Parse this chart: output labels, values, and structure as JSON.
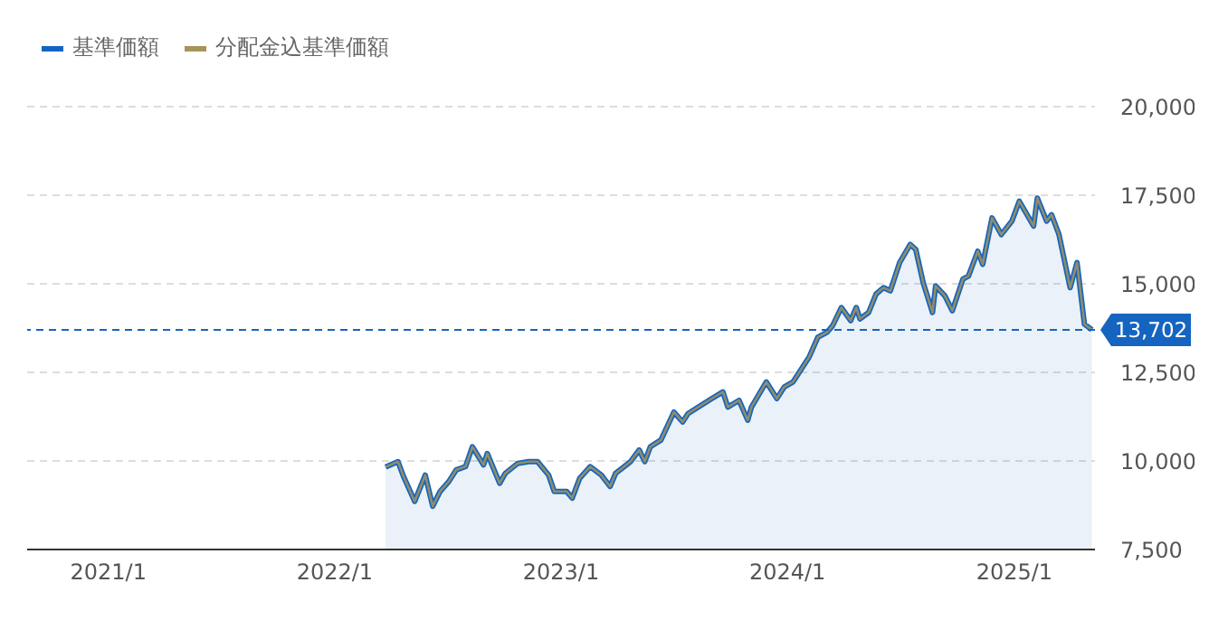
{
  "chart_data": {
    "type": "line",
    "x": [
      "2022-03-24",
      "2022-04-13",
      "2022-04-22",
      "2022-05-10",
      "2022-05-27",
      "2022-06-08",
      "2022-06-20",
      "2022-07-04",
      "2022-07-16",
      "2022-07-31",
      "2022-08-11",
      "2022-08-29",
      "2022-09-04",
      "2022-09-24",
      "2022-10-03",
      "2022-10-23",
      "2022-11-10",
      "2022-11-24",
      "2022-12-12",
      "2022-12-21",
      "2023-01-10",
      "2023-01-19",
      "2023-01-31",
      "2023-02-17",
      "2023-03-07",
      "2023-03-21",
      "2023-03-30",
      "2023-04-23",
      "2023-05-07",
      "2023-05-16",
      "2023-05-25",
      "2023-06-11",
      "2023-07-02",
      "2023-07-16",
      "2023-07-25",
      "2023-09-01",
      "2023-09-19",
      "2023-09-27",
      "2023-10-15",
      "2023-10-29",
      "2023-11-04",
      "2023-11-28",
      "2023-12-15",
      "2023-12-27",
      "2024-01-10",
      "2024-02-05",
      "2024-02-19",
      "2024-03-05",
      "2024-03-14",
      "2024-03-28",
      "2024-04-12",
      "2024-04-21",
      "2024-04-27",
      "2024-05-11",
      "2024-05-23",
      "2024-06-04",
      "2024-06-15",
      "2024-06-30",
      "2024-07-17",
      "2024-07-26",
      "2024-08-07",
      "2024-08-22",
      "2024-08-27",
      "2024-09-11",
      "2024-09-23",
      "2024-10-10",
      "2024-10-19",
      "2024-11-03",
      "2024-11-11",
      "2024-11-26",
      "2024-12-11",
      "2024-12-28",
      "2025-01-09",
      "2025-02-01",
      "2025-02-07",
      "2025-02-22",
      "2025-03-02",
      "2025-03-14",
      "2025-04-01",
      "2025-04-12",
      "2025-04-24",
      "2025-05-06"
    ],
    "series": [
      {
        "name": "基準価額",
        "type": "area",
        "color": "#1565c0",
        "values": [
          9830,
          9980,
          9560,
          8860,
          9600,
          8720,
          9140,
          9420,
          9750,
          9840,
          10400,
          9890,
          10210,
          9370,
          9650,
          9930,
          9980,
          9980,
          9600,
          9140,
          9140,
          8950,
          9510,
          9840,
          9600,
          9280,
          9650,
          9980,
          10310,
          9980,
          10400,
          10590,
          11380,
          11100,
          11340,
          11760,
          11950,
          11520,
          11710,
          11150,
          11520,
          12230,
          11760,
          12090,
          12230,
          12930,
          13490,
          13630,
          13820,
          14330,
          13960,
          14330,
          14010,
          14190,
          14710,
          14890,
          14800,
          15600,
          16110,
          15970,
          15030,
          14190,
          14940,
          14660,
          14240,
          15130,
          15220,
          15920,
          15550,
          16860,
          16390,
          16770,
          17330,
          16630,
          17420,
          16770,
          16950,
          16390,
          14890,
          15600,
          13860,
          13702
        ]
      },
      {
        "name": "分配金込基準価額",
        "type": "line",
        "color": "#a6945a",
        "values": [
          9830,
          9980,
          9560,
          8860,
          9600,
          8720,
          9140,
          9420,
          9750,
          9840,
          10400,
          9890,
          10210,
          9370,
          9650,
          9930,
          9980,
          9980,
          9600,
          9140,
          9140,
          8950,
          9510,
          9840,
          9600,
          9280,
          9650,
          9980,
          10310,
          9980,
          10400,
          10590,
          11380,
          11100,
          11340,
          11760,
          11950,
          11520,
          11710,
          11150,
          11520,
          12230,
          11760,
          12090,
          12230,
          12930,
          13490,
          13630,
          13820,
          14330,
          13960,
          14330,
          14010,
          14190,
          14710,
          14890,
          14800,
          15600,
          16110,
          15970,
          15030,
          14190,
          14940,
          14660,
          14240,
          15130,
          15220,
          15920,
          15550,
          16860,
          16390,
          16770,
          17330,
          16630,
          17420,
          16770,
          16950,
          16390,
          14890,
          15600,
          13860,
          13702
        ]
      }
    ],
    "xlim": [
      "2020-08-23",
      "2025-05-11"
    ],
    "xticks": [
      {
        "value": "2021-01-01",
        "label": "2021/1"
      },
      {
        "value": "2022-01-01",
        "label": "2022/1"
      },
      {
        "value": "2023-01-01",
        "label": "2023/1"
      },
      {
        "value": "2024-01-01",
        "label": "2024/1"
      },
      {
        "value": "2025-01-01",
        "label": "2025/1"
      }
    ],
    "ylim": [
      7500,
      20000
    ],
    "yticks": [
      {
        "value": 7500,
        "label": "7,500"
      },
      {
        "value": 10000,
        "label": "10,000"
      },
      {
        "value": 12500,
        "label": "12,500"
      },
      {
        "value": 15000,
        "label": "15,000"
      },
      {
        "value": 17500,
        "label": "17,500"
      },
      {
        "value": 20000,
        "label": "20,000"
      }
    ],
    "ref_lines": [
      {
        "axis": "y",
        "value": 13702,
        "label": "13,702",
        "color": "#1565c0",
        "line_style": "dashed"
      }
    ],
    "grid": "y",
    "legend": "top left",
    "marker": "none",
    "line_style": "solid"
  }
}
